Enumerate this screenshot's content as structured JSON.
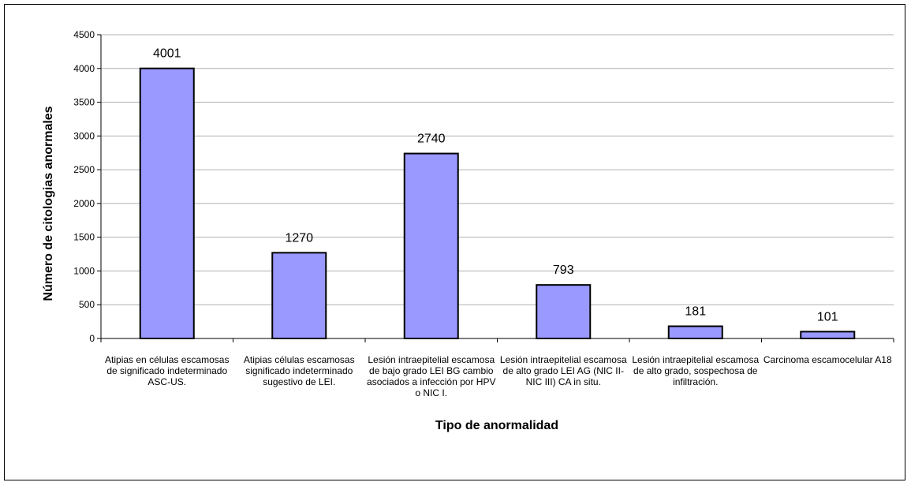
{
  "chart_data": {
    "type": "bar",
    "title": "",
    "xlabel": "Tipo de anormalidad",
    "ylabel": "Número de citologias anormales",
    "ylim": [
      0,
      4500
    ],
    "yticks": [
      0,
      500,
      1000,
      1500,
      2000,
      2500,
      3000,
      3500,
      4000,
      4500
    ],
    "grid": true,
    "legend": "none",
    "bar_color": "#9999ff",
    "categories": [
      "Atipias en células escamosas de significado indeterminado ASC-US.",
      "Atipias células escamosas significado indeterminado sugestivo de LEI.",
      "Lesión intraepitelial escamosa de bajo grado LEI BG cambio asociados a infección por HPV o NIC I.",
      "Lesión intraepitelial escamosa de alto grado LEI AG (NIC II-NIC III) CA in situ.",
      "Lesión intraepitelial escamosa de alto grado, sospechosa de infiltración.",
      "Carcinoma escamocelular A18"
    ],
    "values": [
      4001,
      1270,
      2740,
      793,
      181,
      101
    ]
  }
}
